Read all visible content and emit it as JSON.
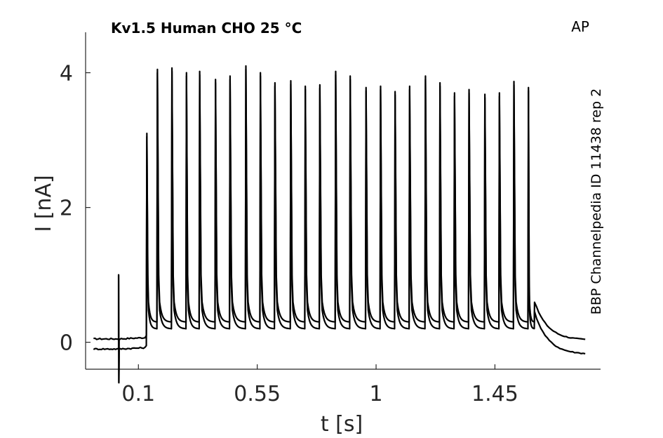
{
  "chart_data": {
    "type": "line",
    "title": "Kv1.5  Human  CHO  25 °C",
    "corner_label": "AP",
    "side_note": "BBP Channelpedia ID 11438 rep 2",
    "xlabel": "t [s]",
    "ylabel": "I [nA]",
    "xlim": [
      -0.1,
      1.85
    ],
    "ylim": [
      -0.4,
      4.6
    ],
    "x_ticks": [
      0.1,
      0.55,
      1,
      1.45
    ],
    "x_tick_labels": [
      "0.1",
      "0.55",
      "1",
      "1.45"
    ],
    "y_ticks": [
      0,
      2,
      4
    ],
    "y_tick_labels": [
      "0",
      "2",
      "4"
    ],
    "grid": false,
    "stimulus": {
      "onset_s": 0.025,
      "train_start_s": 0.13,
      "train_end_s": 1.6,
      "artifact_max_nA": 1.0,
      "artifact_min_nA": -0.6
    },
    "series": [
      {
        "baseline_pre_nA": 0.05,
        "baseline_post_nA": 0.03,
        "trough_nA": 0.3,
        "tail_nA": 0.6,
        "spike_times_s": [
          0.13,
          0.17,
          0.225,
          0.28,
          0.33,
          0.39,
          0.445,
          0.505,
          0.56,
          0.615,
          0.675,
          0.73,
          0.785,
          0.845,
          0.9,
          0.96,
          1.015,
          1.07,
          1.125,
          1.185,
          1.24,
          1.295,
          1.35,
          1.41,
          1.465,
          1.52,
          1.575
        ],
        "spike_peaks_nA": [
          3.1,
          4.05,
          4.07,
          4.0,
          4.02,
          3.9,
          3.95,
          4.1,
          4.0,
          3.85,
          3.88,
          3.8,
          3.82,
          4.02,
          3.95,
          3.78,
          3.8,
          3.72,
          3.8,
          3.95,
          3.85,
          3.7,
          3.75,
          3.68,
          3.7,
          3.87,
          3.78
        ]
      },
      {
        "baseline_pre_nA": -0.1,
        "baseline_post_nA": -0.18,
        "trough_nA": 0.2,
        "tail_nA": 0.45,
        "spike_times_s": [
          0.13,
          0.17,
          0.225,
          0.28,
          0.33,
          0.39,
          0.445,
          0.505,
          0.56,
          0.615,
          0.675,
          0.73,
          0.785,
          0.845,
          0.9,
          0.96,
          1.015,
          1.07,
          1.125,
          1.185,
          1.24,
          1.295,
          1.35,
          1.41,
          1.465,
          1.52,
          1.575
        ],
        "spike_peaks_nA": [
          3.05,
          4.0,
          4.02,
          3.95,
          3.97,
          3.85,
          3.9,
          4.05,
          3.95,
          3.8,
          3.83,
          3.75,
          3.77,
          3.97,
          3.9,
          3.73,
          3.75,
          3.67,
          3.75,
          3.9,
          3.8,
          3.65,
          3.7,
          3.63,
          3.65,
          3.82,
          3.73
        ]
      }
    ]
  }
}
